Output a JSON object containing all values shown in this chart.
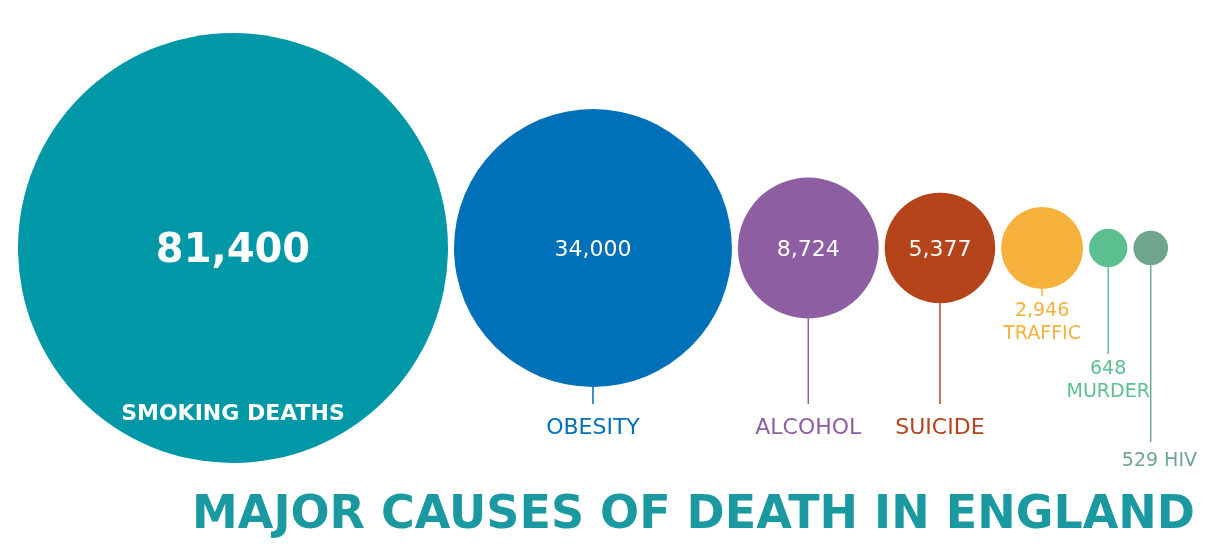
{
  "chart_data": {
    "type": "other",
    "title": "MAJOR CAUSES OF DEATH IN ENGLAND",
    "categories": [
      "SMOKING DEATHS",
      "OBESITY",
      "ALCOHOL",
      "SUICIDE",
      "TRAFFIC",
      "MURDER",
      "HIV"
    ],
    "values": [
      81400,
      34000,
      8724,
      5377,
      2946,
      648,
      529
    ],
    "colors": [
      "#0097a7",
      "#0070b8",
      "#8e5ea2",
      "#b5441a",
      "#f6b13c",
      "#5cbf8f",
      "#6fa58c"
    ],
    "value_labels": [
      "81,400",
      "34,000",
      "8,724",
      "5,377",
      "2,946",
      "648",
      "529"
    ]
  }
}
